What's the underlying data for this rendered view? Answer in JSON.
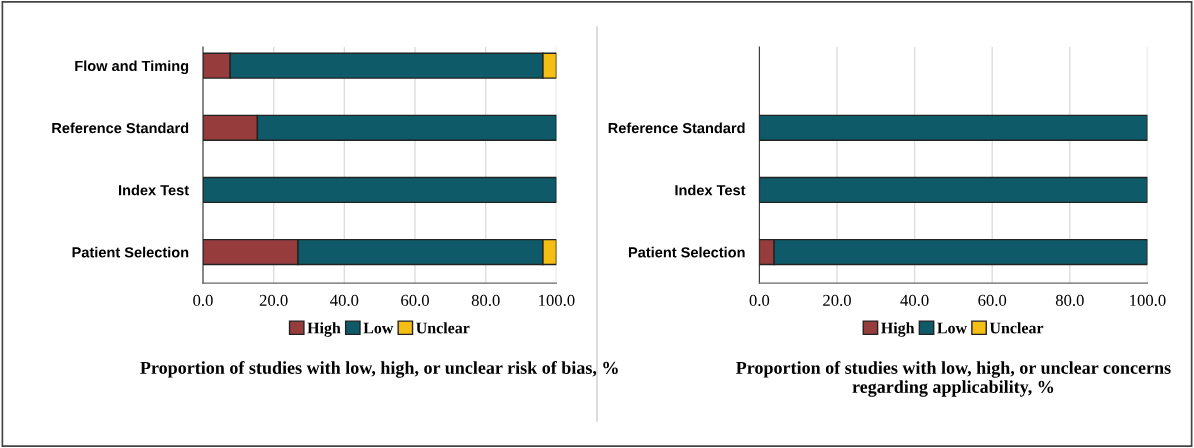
{
  "chart_data": [
    {
      "type": "bar",
      "orientation": "horizontal",
      "stacked": true,
      "title": "Proportion of studies with low, high, or unclear risk of bias, %",
      "categories": [
        "Flow and Timing",
        "Reference Standard",
        "Index Test",
        "Patient Selection"
      ],
      "series": [
        {
          "name": "High",
          "color": "#963c3c",
          "values": [
            7.7,
            15.4,
            0,
            26.9
          ]
        },
        {
          "name": "Low",
          "color": "#0f5a69",
          "values": [
            88.5,
            84.6,
            100,
            69.3
          ]
        },
        {
          "name": "Unclear",
          "color": "#f5be14",
          "values": [
            3.8,
            0,
            0,
            3.8
          ]
        }
      ],
      "xlim": [
        0,
        100
      ],
      "xticks": [
        {
          "value": 0,
          "label": "0.0"
        },
        {
          "value": 20,
          "label": "20.0"
        },
        {
          "value": 40,
          "label": "40.0"
        },
        {
          "value": 60,
          "label": "60.0"
        },
        {
          "value": 80,
          "label": "80.0"
        },
        {
          "value": 100,
          "label": "100.0"
        }
      ],
      "grid": "x",
      "legend": "bottom"
    },
    {
      "type": "bar",
      "orientation": "horizontal",
      "stacked": true,
      "title": "Proportion of studies with low, high, or unclear concerns regarding applicability, %",
      "categories": [
        null,
        "Reference Standard",
        "Index Test",
        "Patient Selection"
      ],
      "series": [
        {
          "name": "High",
          "color": "#963c3c",
          "values": [
            null,
            0,
            0,
            3.8
          ]
        },
        {
          "name": "Low",
          "color": "#0f5a69",
          "values": [
            null,
            100,
            100,
            96.2
          ]
        },
        {
          "name": "Unclear",
          "color": "#f5be14",
          "values": [
            null,
            0,
            0,
            0
          ]
        }
      ],
      "xlim": [
        0,
        100
      ],
      "xticks": [
        {
          "value": 0,
          "label": "0.0"
        },
        {
          "value": 20,
          "label": "20.0"
        },
        {
          "value": 40,
          "label": "40.0"
        },
        {
          "value": 60,
          "label": "60.0"
        },
        {
          "value": 80,
          "label": "80.0"
        },
        {
          "value": 100,
          "label": "100.0"
        }
      ],
      "grid": "x",
      "legend": "bottom"
    }
  ]
}
